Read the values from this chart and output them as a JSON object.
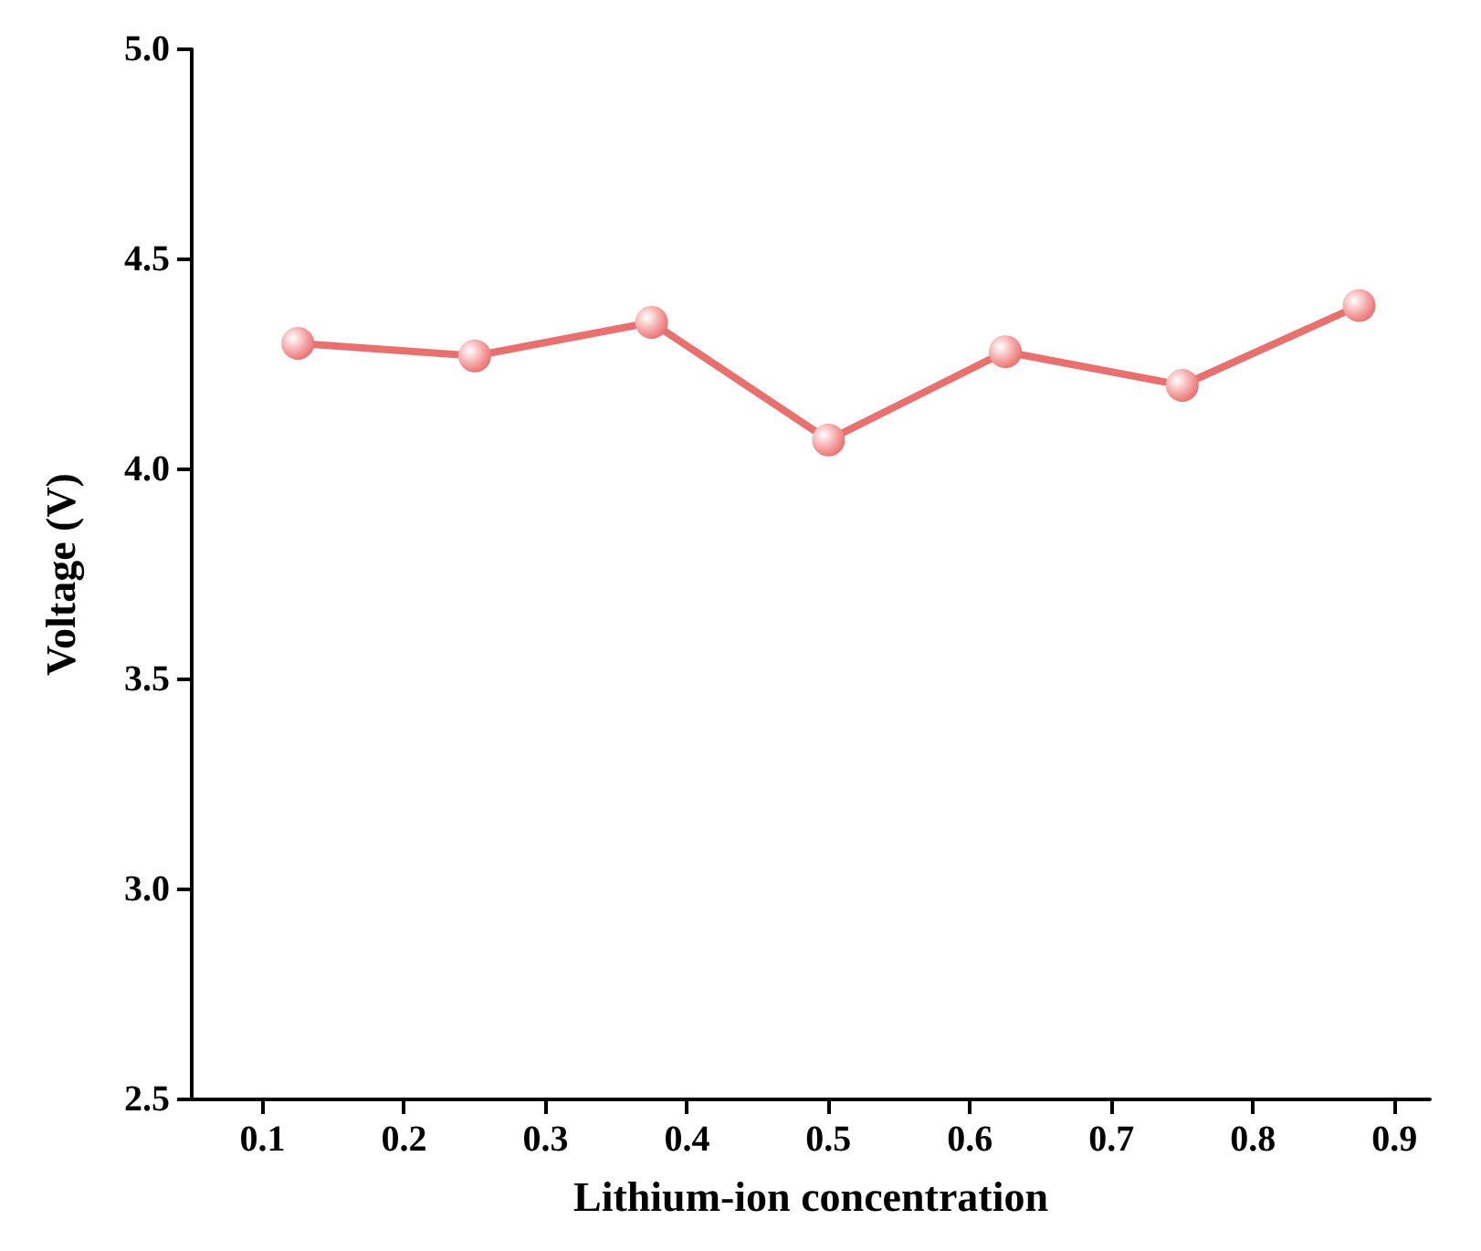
{
  "chart_data": {
    "type": "line",
    "xlabel": "Lithium-ion concentration",
    "ylabel": "Voltage (V)",
    "x": [
      0.125,
      0.25,
      0.375,
      0.5,
      0.625,
      0.75,
      0.875
    ],
    "series": [
      {
        "color": "#e8706e",
        "values": [
          4.3,
          4.27,
          4.35,
          4.07,
          4.28,
          4.2,
          4.39
        ]
      }
    ],
    "xlim": [
      0.05,
      0.925
    ],
    "xticks": [
      0.1,
      0.2,
      0.3,
      0.4,
      0.5,
      0.6,
      0.7,
      0.8,
      0.9
    ],
    "ylim": [
      2.5,
      5.0
    ],
    "yticks": [
      2.5,
      {
        "value": 3,
        "label": "3.0"
      },
      3.5,
      {
        "value": 4,
        "label": "4.0"
      },
      4.5,
      {
        "value": 5,
        "label": "5.0"
      }
    ],
    "grid": false,
    "marker": "circle",
    "line_style": "solid"
  }
}
